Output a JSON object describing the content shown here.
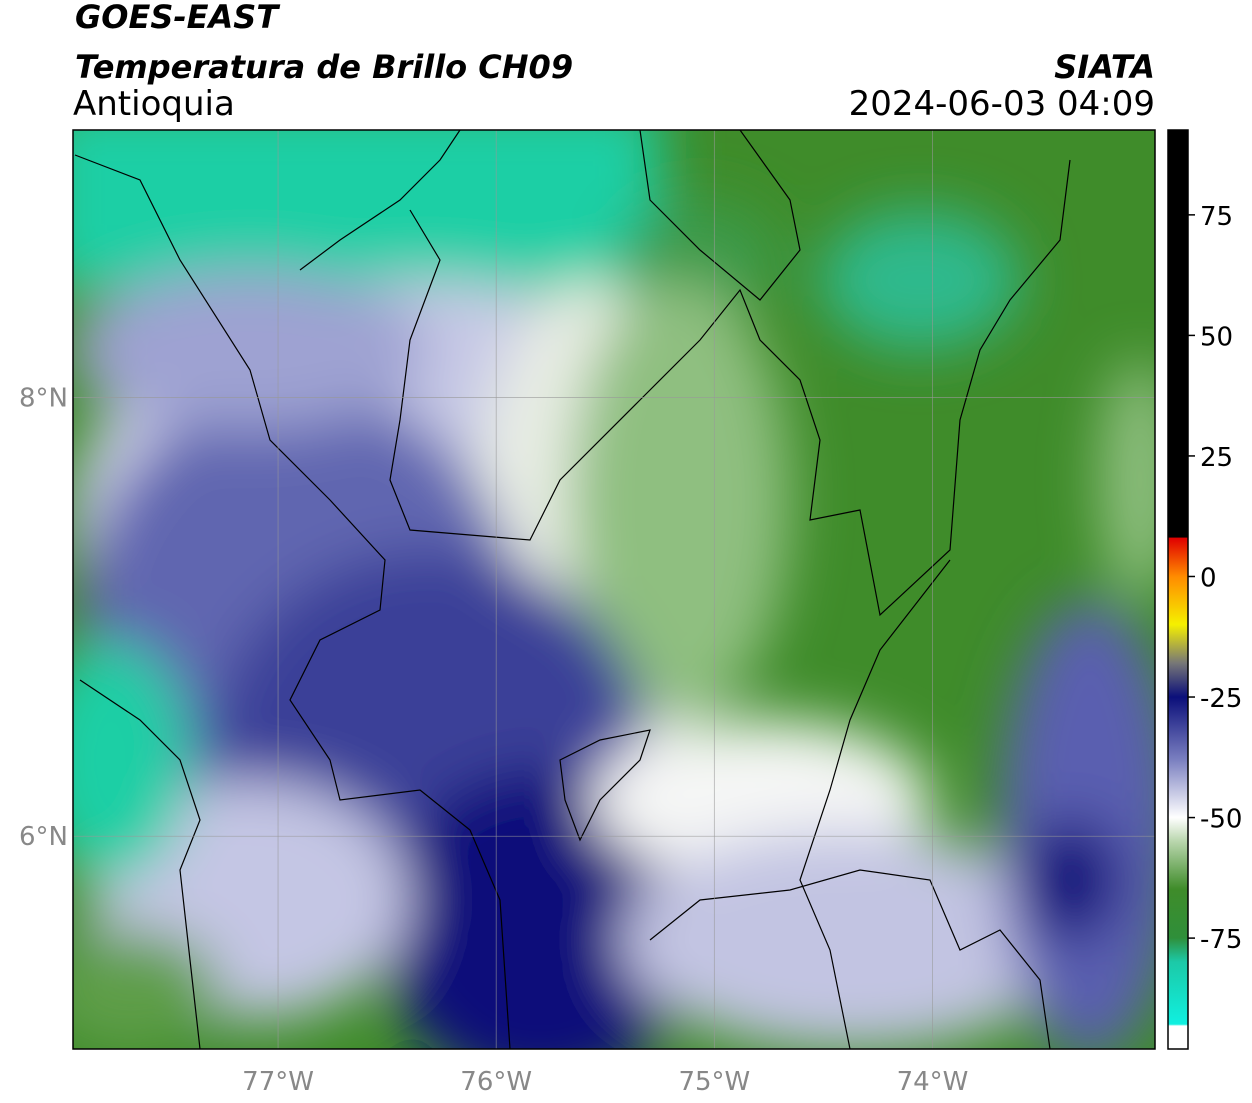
{
  "header": {
    "title": "GOES-EAST",
    "subtitle": "Temperatura de Brillo CH09",
    "region": "Antioquia",
    "source": "SIATA",
    "timestamp": "2024-06-03 04:09"
  },
  "map": {
    "lonlim": [
      -77.94,
      -72.98
    ],
    "latlim": [
      5.03,
      9.22
    ],
    "lonticks": [
      {
        "value": -77,
        "label": "77°W"
      },
      {
        "value": -76,
        "label": "76°W"
      },
      {
        "value": -75,
        "label": "75°W"
      },
      {
        "value": -74,
        "label": "74°W"
      }
    ],
    "latticks": [
      {
        "value": 8,
        "label": "8°N"
      },
      {
        "value": 6,
        "label": "6°N"
      }
    ],
    "grid": true
  },
  "colorbar": {
    "lim": [
      -98,
      92.6
    ],
    "ticks": [
      75,
      50,
      25,
      0,
      -25,
      -50,
      -75
    ]
  }
}
